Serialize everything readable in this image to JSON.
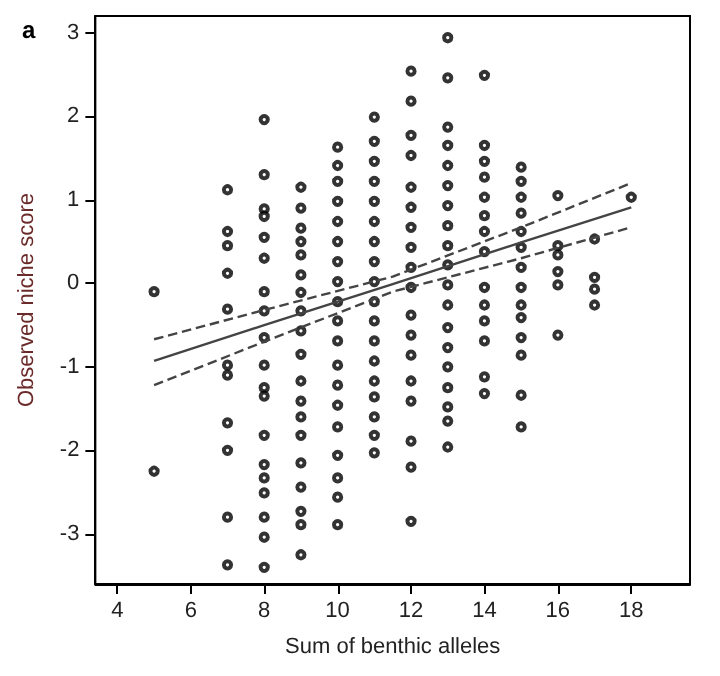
{
  "chart_data": {
    "type": "scatter",
    "title": "a",
    "xlabel": "Sum of benthic alleles",
    "ylabel": "Observed niche score",
    "xlim": [
      3.4,
      19.6
    ],
    "ylim": [
      -3.6,
      3.2
    ],
    "xticks": [
      4,
      6,
      8,
      10,
      12,
      14,
      16,
      18
    ],
    "yticks": [
      -3,
      -2,
      -1,
      0,
      1,
      2,
      3
    ],
    "grid": false,
    "series": [
      {
        "color": "#000000",
        "marker": "circle",
        "x": [
          5,
          5,
          7,
          7,
          7,
          7,
          7,
          7,
          7,
          7,
          7,
          7,
          7,
          8,
          8,
          8,
          8,
          8,
          8,
          8,
          8,
          8,
          8,
          8,
          8,
          8,
          8,
          8,
          8,
          8,
          8,
          8,
          9,
          9,
          9,
          9,
          9,
          9,
          9,
          9,
          9,
          9,
          9,
          9,
          9,
          9,
          9,
          9,
          9,
          9,
          9,
          10,
          10,
          10,
          10,
          10,
          10,
          10,
          10,
          10,
          10,
          10,
          10,
          10,
          10,
          10,
          10,
          10,
          10,
          10,
          11,
          11,
          11,
          11,
          11,
          11,
          11,
          11,
          11,
          11,
          11,
          11,
          11,
          11,
          11,
          11,
          11,
          11,
          12,
          12,
          12,
          12,
          12,
          12,
          12,
          12,
          12,
          12,
          12,
          12,
          12,
          12,
          12,
          12,
          12,
          12,
          13,
          13,
          13,
          13,
          13,
          13,
          13,
          13,
          13,
          13,
          13,
          13,
          13,
          13,
          13,
          13,
          13,
          13,
          13,
          14,
          14,
          14,
          14,
          14,
          14,
          14,
          14,
          14,
          14,
          14,
          14,
          14,
          14,
          15,
          15,
          15,
          15,
          15,
          15,
          15,
          15,
          15,
          15,
          15,
          15,
          15,
          15,
          16,
          16,
          16,
          16,
          16,
          16,
          17,
          17,
          17,
          17,
          18
        ],
        "values": [
          -0.1,
          -2.25,
          1.12,
          0.62,
          0.45,
          0.12,
          -0.31,
          -0.98,
          -1.1,
          -1.67,
          -2.0,
          -2.8,
          -3.37,
          1.96,
          1.3,
          0.89,
          0.8,
          0.55,
          0.3,
          -0.1,
          -0.33,
          -0.65,
          -0.98,
          -1.25,
          -1.35,
          -1.82,
          -2.17,
          -2.33,
          -2.51,
          -2.8,
          -3.04,
          -3.4,
          1.15,
          0.9,
          0.66,
          0.5,
          0.34,
          0.1,
          -0.11,
          -0.33,
          -0.57,
          -0.85,
          -1.17,
          -1.41,
          -1.6,
          -1.82,
          -2.15,
          -2.44,
          -2.73,
          -2.89,
          -3.25,
          1.63,
          1.41,
          1.22,
          0.98,
          0.74,
          0.5,
          0.26,
          0.02,
          -0.22,
          -0.45,
          -0.69,
          -0.98,
          -1.22,
          -1.46,
          -1.72,
          -2.06,
          -2.33,
          -2.56,
          -2.89,
          1.99,
          1.7,
          1.46,
          1.22,
          0.98,
          0.74,
          0.5,
          0.26,
          0.02,
          -0.22,
          -0.45,
          -0.69,
          -0.93,
          -1.17,
          -1.36,
          -1.6,
          -1.82,
          -2.03,
          2.54,
          2.18,
          1.77,
          1.53,
          1.15,
          0.91,
          0.67,
          0.43,
          0.19,
          -0.05,
          -0.38,
          -0.62,
          -0.86,
          -1.17,
          -1.41,
          -1.89,
          -2.2,
          -2.85,
          2.94,
          2.46,
          1.87,
          1.65,
          1.41,
          1.17,
          0.93,
          0.69,
          0.45,
          0.22,
          -0.02,
          -0.26,
          -0.53,
          -0.77,
          -1.0,
          -1.25,
          -1.48,
          -1.65,
          -1.96,
          2.49,
          1.65,
          1.46,
          1.27,
          1.03,
          0.81,
          0.62,
          0.38,
          -0.05,
          -0.26,
          -0.45,
          -0.69,
          -1.12,
          -1.32,
          1.39,
          1.22,
          1.03,
          0.84,
          0.62,
          0.43,
          0.19,
          -0.05,
          -0.26,
          -0.41,
          -0.65,
          -0.86,
          -1.34,
          -1.72,
          1.05,
          0.45,
          0.34,
          0.14,
          -0.02,
          -0.62,
          0.53,
          0.07,
          -0.07,
          -0.26,
          1.03
        ]
      },
      {
        "type": "line",
        "color": "#444444",
        "marker": "none",
        "line_style": "solid",
        "x": [
          5,
          8,
          11.5,
          15,
          18
        ],
        "values": [
          -0.93,
          -0.5,
          -0.01,
          0.49,
          0.91
        ]
      },
      {
        "type": "line",
        "color": "#444444",
        "marker": "none",
        "line_style": "dashed",
        "x": [
          5,
          8,
          11.5,
          15,
          18
        ],
        "values": [
          -1.22,
          -0.7,
          -0.1,
          0.3,
          0.67
        ]
      },
      {
        "type": "line",
        "color": "#444444",
        "marker": "none",
        "line_style": "dashed",
        "x": [
          5,
          8,
          11.5,
          15,
          18
        ],
        "values": [
          -0.67,
          -0.32,
          0.08,
          0.67,
          1.2
        ]
      }
    ]
  }
}
